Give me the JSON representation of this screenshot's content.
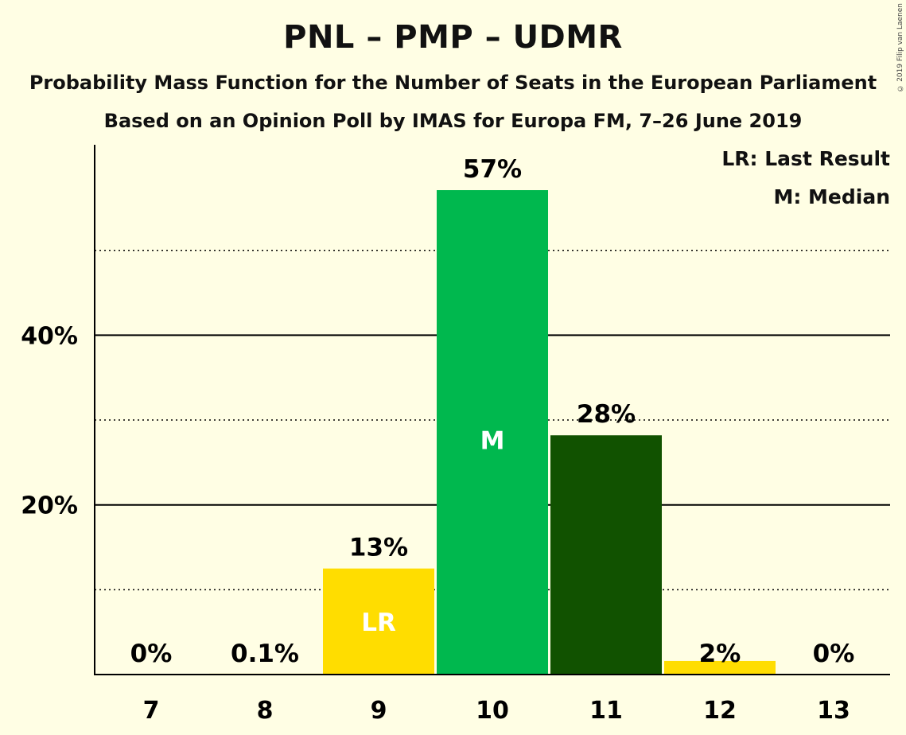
{
  "title": "PNL – PMP – UDMR",
  "subtitle": "Probability Mass Function for the Number of Seats in the European Parliament",
  "subtitle2": "Based on an Opinion Poll by IMAS for Europa FM, 7–26 June 2019",
  "copyright": "© 2019 Filip van Laenen",
  "legend": {
    "last_result": "LR: Last Result",
    "median": "M: Median"
  },
  "chart_data": {
    "type": "bar",
    "categories": [
      "7",
      "8",
      "9",
      "10",
      "11",
      "12",
      "13"
    ],
    "values": [
      0,
      0.1,
      12.5,
      57.1,
      28.2,
      1.6,
      0
    ],
    "data_labels": [
      "0%",
      "0.1%",
      "13%",
      "57%",
      "28%",
      "2%",
      "0%"
    ],
    "bar_colors": [
      "#FFDD00",
      "#FFDD00",
      "#FFDD00",
      "#00B84E",
      "#115200",
      "#FFDD00",
      "#FFDD00"
    ],
    "bar_markers": [
      "",
      "",
      "LR",
      "M",
      "",
      "",
      ""
    ],
    "y_ticks": [
      {
        "value": 20,
        "label": "20%"
      },
      {
        "value": 40,
        "label": "40%"
      }
    ],
    "minor_gridlines": [
      10,
      30,
      50
    ],
    "ylim": [
      0,
      62.5
    ],
    "xlabel": "",
    "ylabel": "",
    "grid": true,
    "legend_position": "top-right"
  }
}
